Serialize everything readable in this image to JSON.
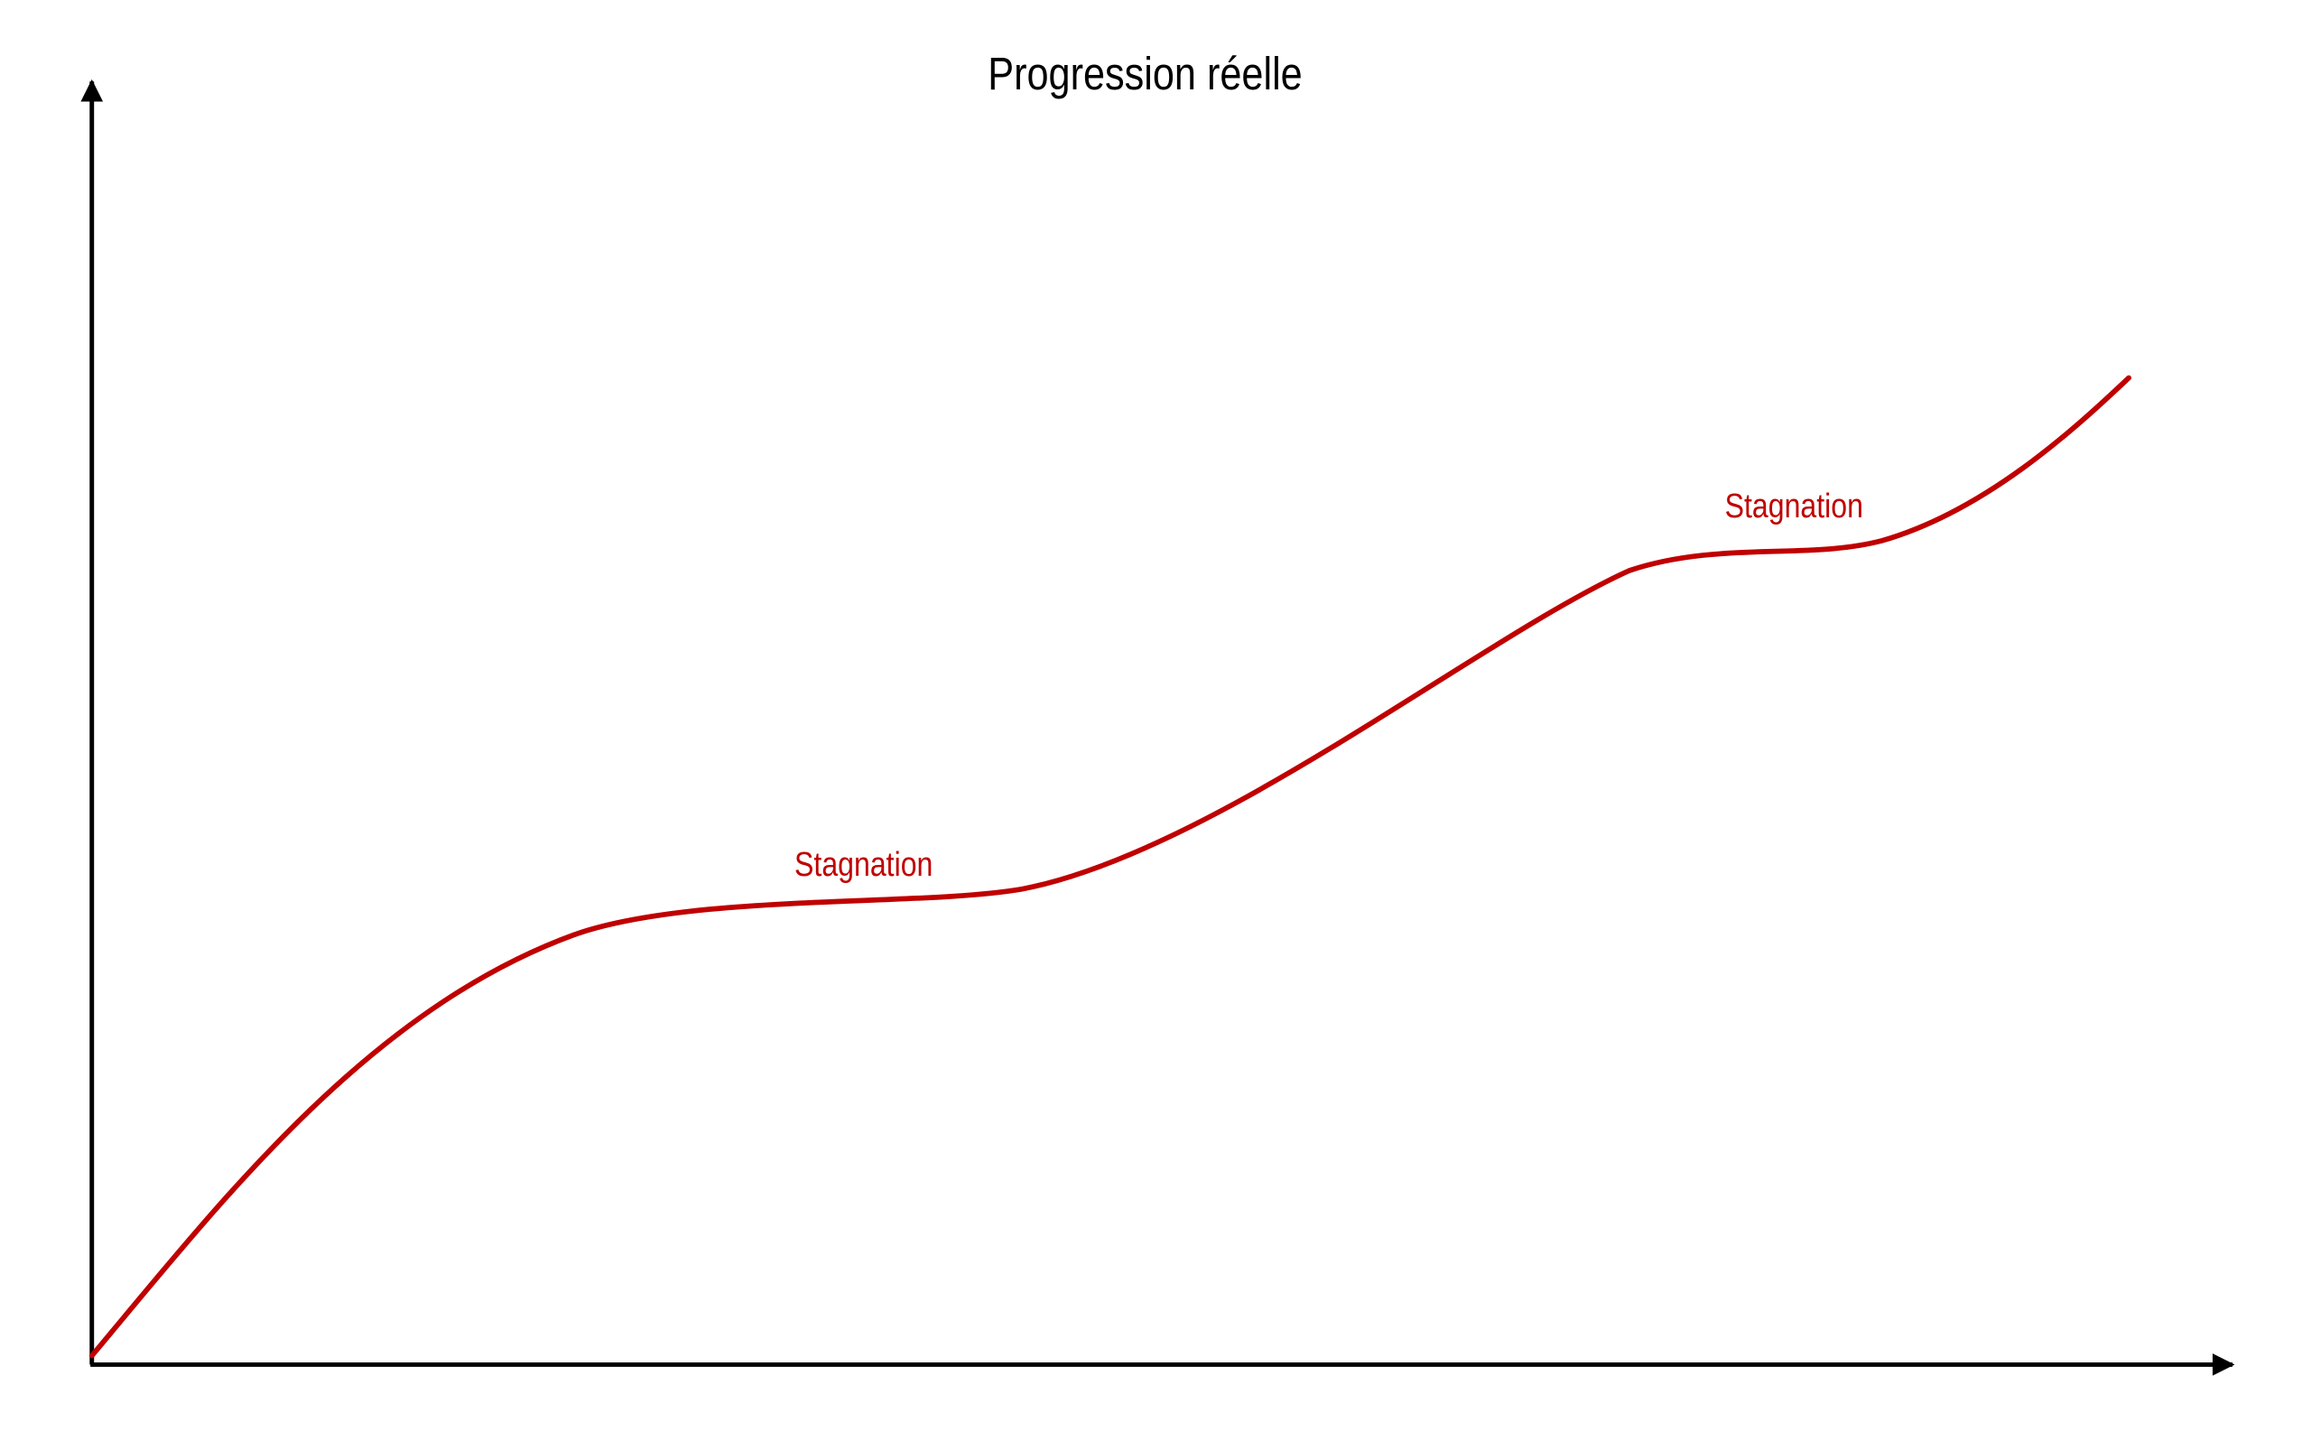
{
  "title": "Progression réelle",
  "annotations": [
    "Stagnation",
    "Stagnation"
  ]
}
